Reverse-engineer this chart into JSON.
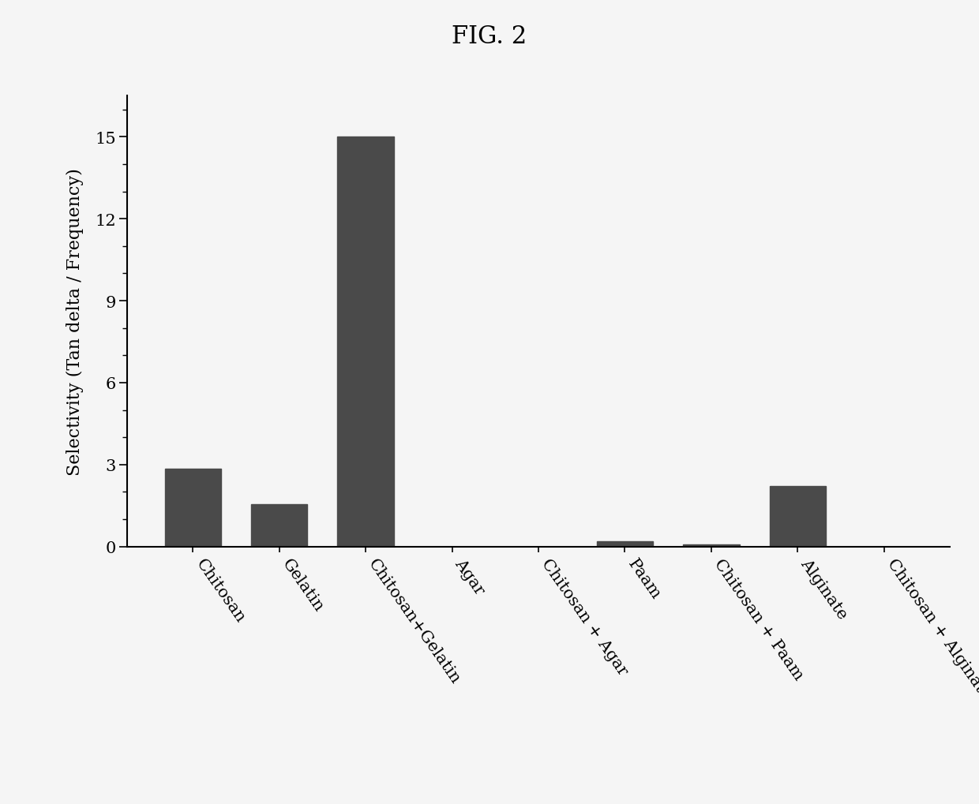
{
  "title": "FIG. 2",
  "categories": [
    "Chitosan",
    "Gelatin",
    "Chitosan+Gelatin",
    "Agar",
    "Chitosan + Agar",
    "Paam",
    "Chitosan + Paam",
    "Alginate",
    "Chitosan + Alginate"
  ],
  "values": [
    2.85,
    1.55,
    15.0,
    0.0,
    0.0,
    0.18,
    0.08,
    2.2,
    0.0
  ],
  "bar_color": "#4a4a4a",
  "ylabel": "Selectivity (Tan delta / Frequency)",
  "yticks": [
    0,
    3,
    6,
    9,
    12,
    15
  ],
  "ylim": [
    0,
    16.5
  ],
  "background_color": "#f5f5f5",
  "title_fontsize": 22,
  "ylabel_fontsize": 16,
  "tick_fontsize": 15,
  "bar_width": 0.65,
  "label_rotation": -55
}
